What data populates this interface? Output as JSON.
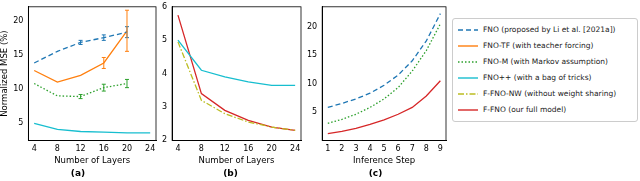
{
  "chart_data": [
    {
      "type": "line",
      "title": "(a)",
      "x_label": "Number of Layers",
      "y_label": "Normalized MSE (%)",
      "x": [
        4,
        8,
        12,
        16,
        20,
        24
      ],
      "xlim": [
        3,
        25
      ],
      "xticks": [
        4,
        8,
        12,
        16,
        20,
        24
      ],
      "ylim": [
        2.5,
        22
      ],
      "yticks": [
        5,
        10,
        15,
        20
      ],
      "grid": false,
      "legend": "right",
      "series": [
        {
          "name": "FNO (proposed by Li et al. [2021a])",
          "color": "#1f77b4",
          "line_style": "dashed",
          "values": [
            13.8,
            15.5,
            16.8,
            17.5,
            18.3,
            null
          ],
          "error": [
            null,
            null,
            0.3,
            0.4,
            0.8,
            null
          ]
        },
        {
          "name": "FNO-TF (with teacher forcing)",
          "color": "#ff7f0e",
          "line_style": "solid",
          "values": [
            12.7,
            11.0,
            12.0,
            13.8,
            18.5,
            null
          ],
          "error": [
            null,
            null,
            null,
            0.8,
            3.0,
            null
          ]
        },
        {
          "name": "FNO-M (with Markov assumption)",
          "color": "#2ca02c",
          "line_style": "dotted",
          "values": [
            10.8,
            9.0,
            8.9,
            10.2,
            10.8,
            null
          ],
          "error": [
            null,
            null,
            0.3,
            0.5,
            0.6,
            null
          ]
        },
        {
          "name": "FNO++ (with a bag of tricks)",
          "color": "#17becf",
          "line_style": "solid",
          "values": [
            5.0,
            4.1,
            3.8,
            3.7,
            3.6,
            3.6
          ]
        }
      ]
    },
    {
      "type": "line",
      "title": "(b)",
      "x_label": "Number of Layers",
      "x": [
        4,
        8,
        12,
        16,
        20,
        24
      ],
      "xlim": [
        3,
        25
      ],
      "xticks": [
        4,
        8,
        12,
        16,
        20,
        24
      ],
      "ylim": [
        2,
        6
      ],
      "yticks": [
        2,
        3,
        4,
        5,
        6
      ],
      "grid": false,
      "legend": "right",
      "series": [
        {
          "name": "FNO++ (with a bag of tricks)",
          "color": "#17becf",
          "line_style": "solid",
          "values": [
            5.0,
            4.1,
            3.9,
            3.75,
            3.65,
            3.65
          ]
        },
        {
          "name": "F-FNO-NW (without weight sharing)",
          "color": "#bcbd22",
          "line_style": "dashdot",
          "values": [
            4.95,
            3.2,
            2.8,
            2.55,
            2.4,
            2.3
          ]
        },
        {
          "name": "F-FNO (our full model)",
          "color": "#d62728",
          "line_style": "solid",
          "values": [
            5.75,
            3.4,
            2.9,
            2.6,
            2.4,
            2.3
          ]
        }
      ]
    },
    {
      "type": "line",
      "title": "(c)",
      "x_label": "Inference Step",
      "x": [
        1,
        2,
        3,
        4,
        5,
        6,
        7,
        8,
        9
      ],
      "xlim": [
        0.6,
        9.4
      ],
      "xticks": [
        1,
        2,
        3,
        4,
        5,
        6,
        7,
        8,
        9
      ],
      "ylim": [
        0,
        23.5
      ],
      "yticks": [
        5,
        10,
        15,
        20
      ],
      "grid": false,
      "legend": "right",
      "series": [
        {
          "name": "FNO (proposed by Li et al. [2021a])",
          "color": "#1f77b4",
          "line_style": "dashed",
          "values": [
            5.8,
            6.5,
            7.3,
            8.3,
            9.7,
            11.5,
            14.0,
            17.5,
            22.3
          ]
        },
        {
          "name": "FNO-M (with Markov assumption)",
          "color": "#2ca02c",
          "line_style": "dotted",
          "values": [
            3.0,
            3.7,
            4.6,
            5.8,
            7.3,
            9.3,
            12.2,
            15.8,
            20.5
          ]
        },
        {
          "name": "F-FNO (our full model)",
          "color": "#d62728",
          "line_style": "solid",
          "values": [
            1.2,
            1.6,
            2.1,
            2.8,
            3.6,
            4.6,
            5.8,
            7.8,
            10.5
          ]
        }
      ]
    }
  ]
}
